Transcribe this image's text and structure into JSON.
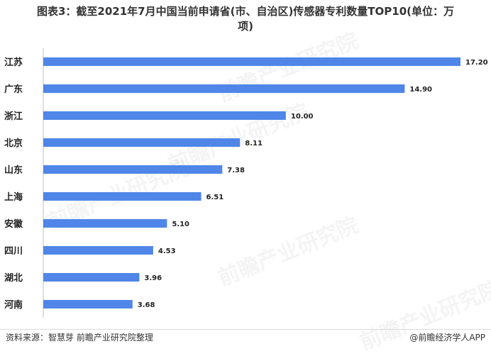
{
  "title": {
    "line1": "图表3：截至2021年7月中国当前申请省(市、自治区)传感器专利数量TOP10(单位：万",
    "line2": "项)"
  },
  "footer": {
    "source": "资料来源：智慧芽 前瞻产业研究院整理",
    "brand": "@前瞻经济学人APP"
  },
  "watermark": "前瞻产业研究院",
  "colors": {
    "bar": "#4f86e8",
    "axis": "#bfbfbf"
  },
  "chart_data": {
    "type": "bar",
    "orientation": "horizontal",
    "categories": [
      "江苏",
      "广东",
      "浙江",
      "北京",
      "山东",
      "上海",
      "安徽",
      "四川",
      "湖北",
      "河南"
    ],
    "values": [
      17.2,
      14.9,
      10.0,
      8.11,
      7.38,
      6.51,
      5.1,
      4.53,
      3.96,
      3.68
    ],
    "value_labels": [
      "17.20",
      "14.90",
      "10.00",
      "8.11",
      "7.38",
      "6.51",
      "5.10",
      "4.53",
      "3.96",
      "3.68"
    ],
    "title": "图表3：截至2021年7月中国当前申请省(市、自治区)传感器专利数量TOP10(单位：万项)",
    "xlim": [
      0,
      17.2
    ],
    "grid": false,
    "legend": "none"
  }
}
